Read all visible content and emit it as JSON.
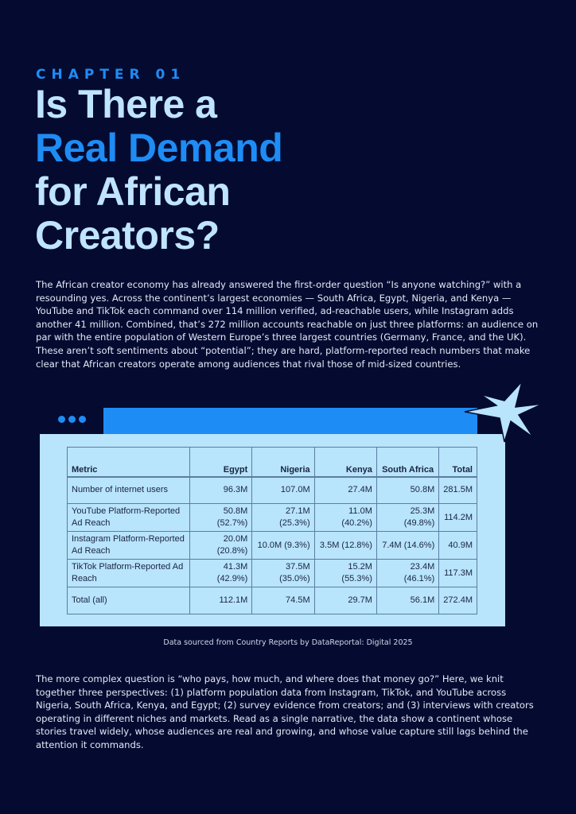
{
  "chapter_label": "CHAPTER 01",
  "title": {
    "line1": "Is There a",
    "line2": "Real Demand",
    "line3": "for African",
    "line4": "Creators?"
  },
  "intro": "The African creator economy has already answered the first-order question “Is anyone watching?” with a resounding yes. Across the continent’s largest economies — South Africa, Egypt, Nigeria, and Kenya — YouTube and TikTok each command over 114 million verified, ad-reachable users, while Instagram adds another 41 million. Combined, that’s 272 million accounts reachable on just three platforms: an audience on par with the entire population of Western Europe’s three largest countries (Germany, France, and the UK). These aren’t soft sentiments about “potential”; they are hard, platform-reported reach numbers that make clear that African creators operate among audiences that rival those of mid-sized countries.",
  "colors": {
    "background": "#050b30",
    "accent": "#1e8cf5",
    "title": "#bfe4ff",
    "card": "#b8e4fc"
  },
  "table": {
    "headers": [
      "Metric",
      "Egypt",
      "Nigeria",
      "Kenya",
      "South Africa",
      "Total"
    ],
    "rows": [
      [
        "Number of internet users",
        "96.3M",
        "107.0M",
        "27.4M",
        "50.8M",
        "281.5M"
      ],
      [
        "YouTube Platform-Reported Ad Reach",
        "50.8M (52.7%)",
        "27.1M (25.3%)",
        "11.0M (40.2%)",
        "25.3M (49.8%)",
        "114.2M"
      ],
      [
        "Instagram Platform-Reported Ad Reach",
        "20.0M (20.8%)",
        "10.0M (9.3%)",
        "3.5M (12.8%)",
        "7.4M (14.6%)",
        "40.9M"
      ],
      [
        "TikTok Platform-Reported Ad Reach",
        "41.3M (42.9%)",
        "37.5M (35.0%)",
        "15.2M (55.3%)",
        "23.4M (46.1%)",
        "117.3M"
      ],
      [
        "Total (all)",
        "112.1M",
        "74.5M",
        "29.7M",
        "56.1M",
        "272.4M"
      ]
    ]
  },
  "caption": "Data sourced from Country Reports by DataReportal: Digital 2025",
  "closing": "The more complex question is “who pays, how much, and where does that money go?” Here, we knit together three perspectives: (1) platform population data from Instagram, TikTok, and YouTube across Nigeria, South Africa, Kenya, and Egypt; (2) survey evidence from creators; and (3) interviews with creators operating in different niches and markets. Read as a single narrative, the data show a continent whose stories travel widely, whose audiences are real and growing, and whose value capture still lags behind the attention it commands."
}
